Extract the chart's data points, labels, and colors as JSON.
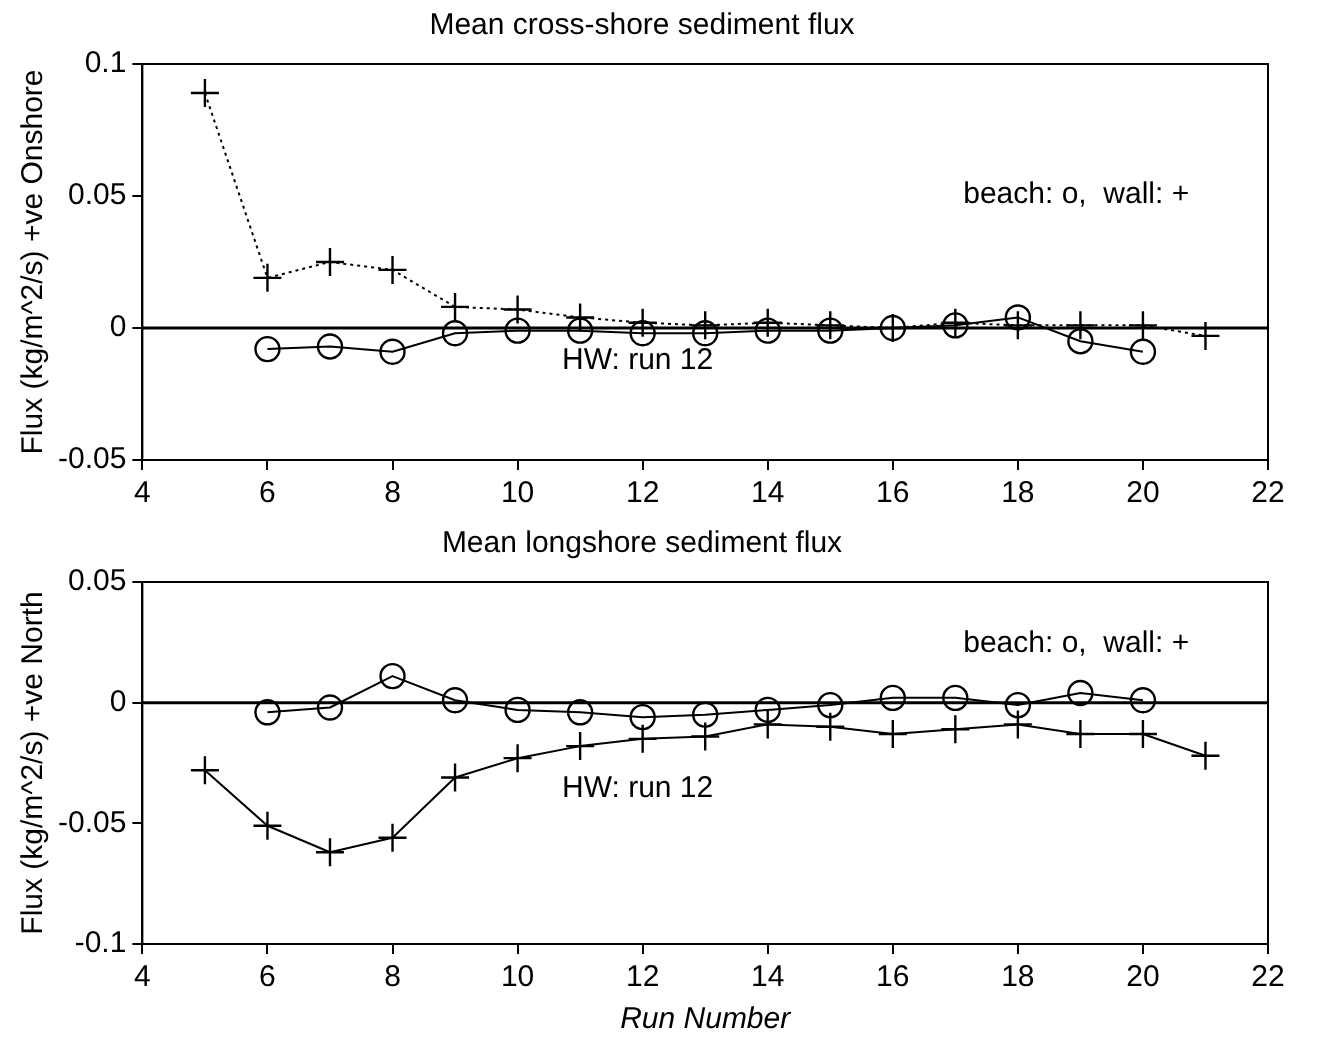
{
  "chart_data": [
    {
      "type": "line",
      "title": "Mean cross-shore sediment flux",
      "ylabel": "Flux (kg/m^2/s) +ve Onshore",
      "x": [
        5,
        6,
        7,
        8,
        9,
        10,
        11,
        12,
        13,
        14,
        15,
        16,
        17,
        18,
        19,
        20,
        21
      ],
      "series": [
        {
          "color": "#000000",
          "marker": "cross",
          "line_style": "dotted",
          "values": [
            0.089,
            0.019,
            0.025,
            0.022,
            0.008,
            0.007,
            0.004,
            0.002,
            0.001,
            0.002,
            0.001,
            0,
            0.002,
            0.001,
            0.001,
            0.001,
            -0.003
          ]
        },
        {
          "color": "#000000",
          "marker": "circle",
          "values": [
            null,
            -0.008,
            -0.007,
            -0.009,
            -0.002,
            -0.001,
            -0.001,
            -0.002,
            -0.002,
            -0.001,
            -0.001,
            0,
            0.001,
            0.004,
            -0.005,
            -0.009,
            null
          ]
        }
      ],
      "xlim": [
        4,
        22
      ],
      "xticks": [
        4,
        6,
        8,
        10,
        12,
        14,
        16,
        18,
        20,
        22
      ],
      "ylim": [
        -0.05,
        0.1
      ],
      "yticks": [
        -0.05,
        0,
        0.05,
        0.1
      ],
      "ref_lines": [
        {
          "axis": "y",
          "value": 0
        }
      ],
      "annotations": [
        "beach: o,  wall: +",
        "HW: run 12"
      ]
    },
    {
      "type": "line",
      "title": "Mean longshore sediment flux",
      "xlabel": "Run Number",
      "ylabel": "Flux (kg/m^2/s) +ve North",
      "x": [
        5,
        6,
        7,
        8,
        9,
        10,
        11,
        12,
        13,
        14,
        15,
        16,
        17,
        18,
        19,
        20,
        21
      ],
      "series": [
        {
          "color": "#000000",
          "marker": "cross",
          "values": [
            -0.028,
            -0.051,
            -0.062,
            -0.056,
            -0.031,
            -0.023,
            -0.018,
            -0.015,
            -0.014,
            -0.009,
            -0.01,
            -0.013,
            -0.011,
            -0.009,
            -0.013,
            -0.013,
            -0.022
          ]
        },
        {
          "color": "#000000",
          "marker": "circle",
          "values": [
            null,
            -0.004,
            -0.002,
            0.011,
            0.001,
            -0.003,
            -0.004,
            -0.006,
            -0.005,
            -0.003,
            -0.001,
            0.002,
            0.002,
            -0.001,
            0.004,
            0.001,
            null
          ]
        }
      ],
      "xlim": [
        4,
        22
      ],
      "xticks": [
        4,
        6,
        8,
        10,
        12,
        14,
        16,
        18,
        20,
        22
      ],
      "ylim": [
        -0.1,
        0.05
      ],
      "yticks": [
        -0.1,
        -0.05,
        0,
        0.05
      ],
      "ref_lines": [
        {
          "axis": "y",
          "value": 0
        }
      ],
      "annotations": [
        "beach: o,  wall: +",
        "HW: run 12"
      ]
    }
  ]
}
